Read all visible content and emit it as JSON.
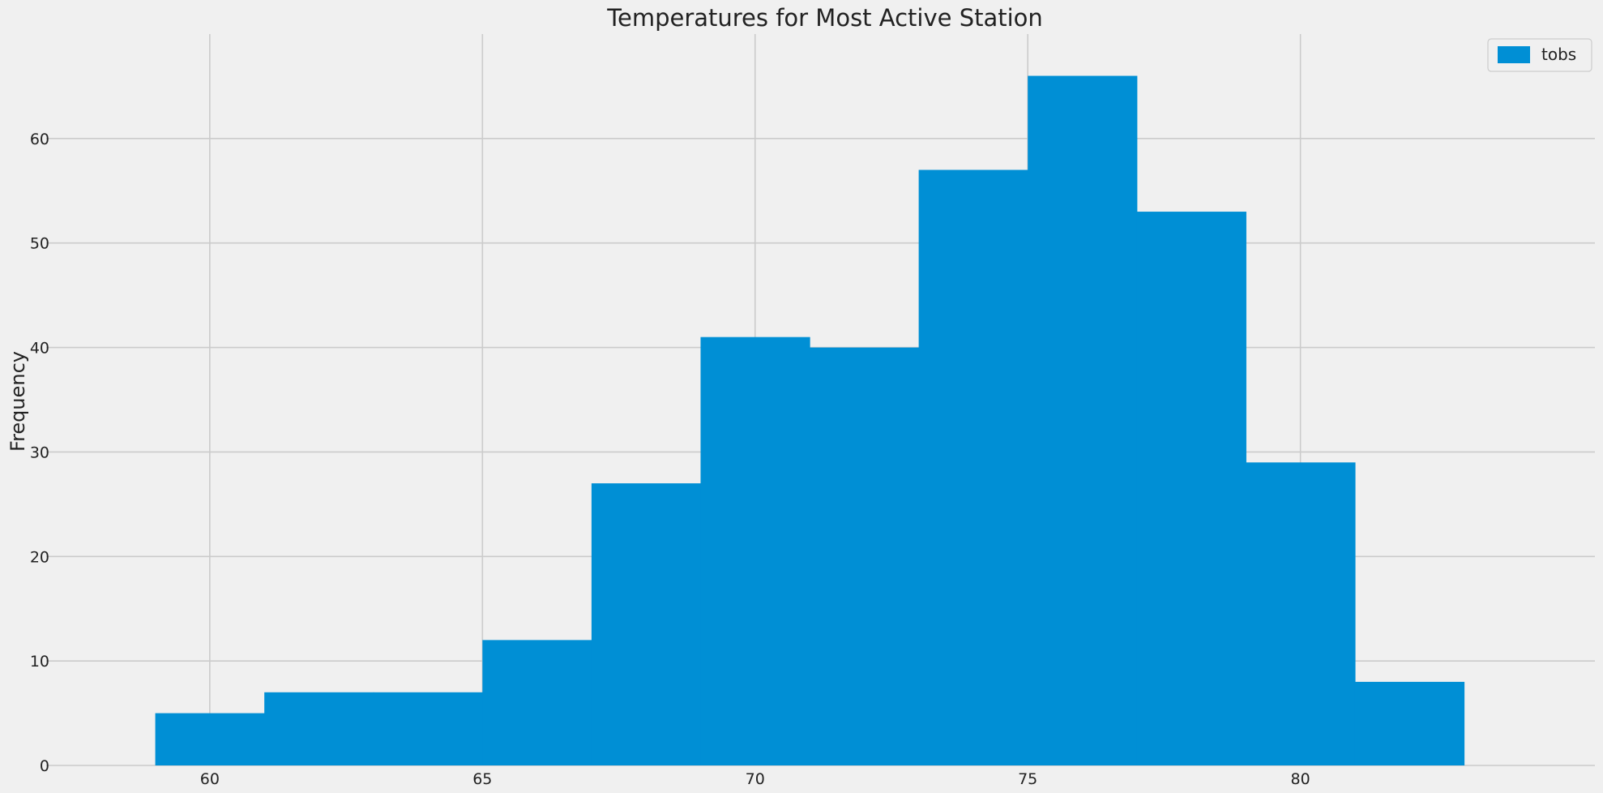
{
  "chart_data": {
    "type": "bar",
    "title": "Temperatures for Most Active Station",
    "xlabel": "",
    "ylabel": "Frequency",
    "bin_edges": [
      59,
      61,
      63,
      65,
      67,
      69,
      71,
      73,
      75,
      77,
      79,
      81,
      83
    ],
    "series": [
      {
        "name": "tobs",
        "values": [
          5,
          7,
          7,
          12,
          27,
          41,
          40,
          57,
          66,
          53,
          29,
          8
        ]
      }
    ],
    "xlim": [
      57.0,
      85.4
    ],
    "ylim": [
      0,
      70
    ],
    "xticks": [
      60,
      65,
      70,
      75,
      80
    ],
    "yticks": [
      0,
      10,
      20,
      30,
      40,
      50,
      60
    ],
    "grid": true,
    "legend": "top-right",
    "colors": {
      "bar": "#008fd5",
      "background": "#f0f0f0",
      "grid": "#cbcbcb"
    }
  }
}
